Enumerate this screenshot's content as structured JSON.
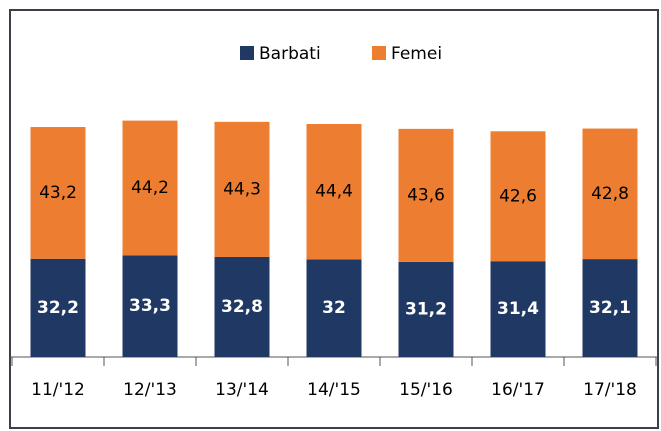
{
  "chart_data": {
    "type": "stacked_bar",
    "categories": [
      "11/'12",
      "12/'13",
      "13/'14",
      "14/'15",
      "15/'16",
      "16/'17",
      "17/'18"
    ],
    "series": [
      {
        "name": "Barbati",
        "color": "#1f3864",
        "values": [
          32.2,
          33.3,
          32.8,
          32,
          31.2,
          31.4,
          32.1
        ],
        "value_labels": [
          "32,2",
          "33,3",
          "32,8",
          "32",
          "31,2",
          "31,4",
          "32,1"
        ]
      },
      {
        "name": "Femei",
        "color": "#ed7d31",
        "values": [
          43.2,
          44.2,
          44.3,
          44.4,
          43.6,
          42.6,
          42.8
        ],
        "value_labels": [
          "43,2",
          "44,2",
          "44,3",
          "44,4",
          "43,6",
          "42,6",
          "42,8"
        ]
      }
    ],
    "ylim": [
      0,
      100
    ],
    "legend": "top"
  }
}
